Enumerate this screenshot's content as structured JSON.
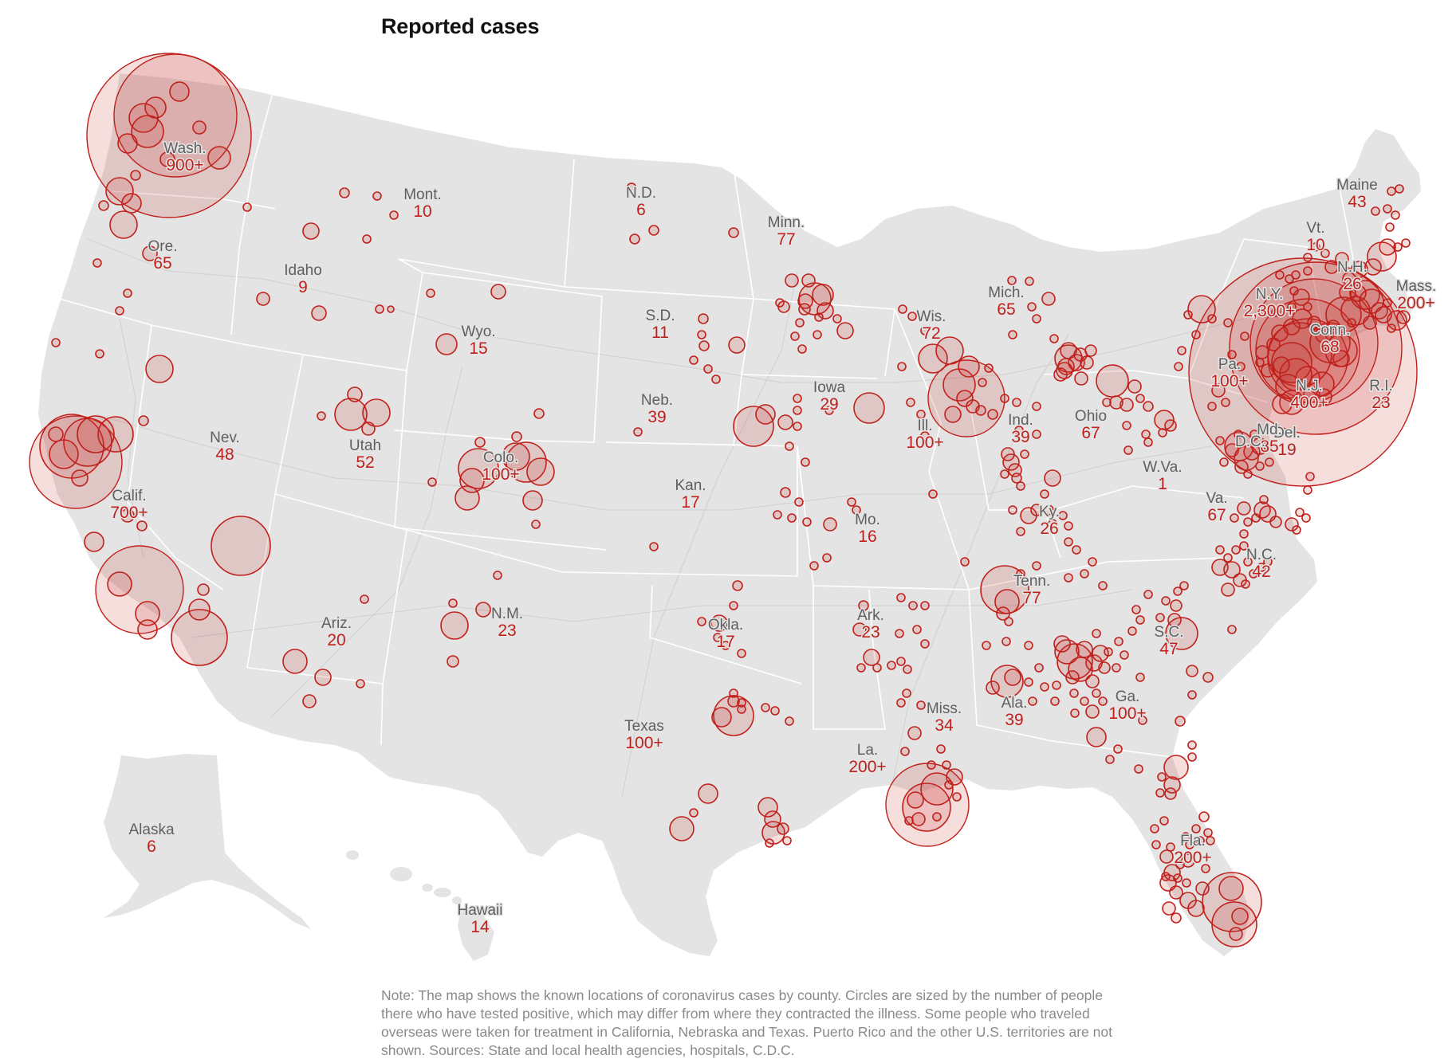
{
  "title": "Reported cases",
  "note": "Note: The map shows the known locations of coronavirus cases by county. Circles are sized by the number of people there who have tested positive, which may differ from where they contracted the illness. Some people who traveled overseas were taken for treatment in California, Nebraska and Texas. Puerto Rico and the other U.S. territories are not shown. Sources: State and local health agencies, hospitals, C.D.C.",
  "colors": {
    "land": "#e4e4e4",
    "border": "#ffffff",
    "road": "#d2d2d2",
    "circle_fill": "rgba(200,50,45,0.16)",
    "circle_stroke": "#c0201b",
    "count_text": "#c0201b",
    "name_text": "#5f5f5f"
  },
  "states": [
    {
      "name": "Wash.",
      "count": "900+"
    },
    {
      "name": "Ore.",
      "count": "65"
    },
    {
      "name": "Calif.",
      "count": "700+"
    },
    {
      "name": "Nev.",
      "count": "48"
    },
    {
      "name": "Idaho",
      "count": "9"
    },
    {
      "name": "Mont.",
      "count": "10"
    },
    {
      "name": "Wyo.",
      "count": "15"
    },
    {
      "name": "Utah",
      "count": "52"
    },
    {
      "name": "Colo.",
      "count": "100+"
    },
    {
      "name": "Ariz.",
      "count": "20"
    },
    {
      "name": "N.M.",
      "count": "23"
    },
    {
      "name": "N.D.",
      "count": "6"
    },
    {
      "name": "S.D.",
      "count": "11"
    },
    {
      "name": "Neb.",
      "count": "39"
    },
    {
      "name": "Kan.",
      "count": "17"
    },
    {
      "name": "Okla.",
      "count": "17"
    },
    {
      "name": "Texas",
      "count": "100+"
    },
    {
      "name": "Minn.",
      "count": "77"
    },
    {
      "name": "Iowa",
      "count": "29"
    },
    {
      "name": "Mo.",
      "count": "16"
    },
    {
      "name": "Ark.",
      "count": "23"
    },
    {
      "name": "La.",
      "count": "200+"
    },
    {
      "name": "Wis.",
      "count": "72"
    },
    {
      "name": "Ill.",
      "count": "100+"
    },
    {
      "name": "Mich.",
      "count": "65"
    },
    {
      "name": "Ind.",
      "count": "39"
    },
    {
      "name": "Ohio",
      "count": "67"
    },
    {
      "name": "Ky.",
      "count": "26"
    },
    {
      "name": "Tenn.",
      "count": "77"
    },
    {
      "name": "Miss.",
      "count": "34"
    },
    {
      "name": "Ala.",
      "count": "39"
    },
    {
      "name": "Ga.",
      "count": "100+"
    },
    {
      "name": "Fla.",
      "count": "200+"
    },
    {
      "name": "S.C.",
      "count": "47"
    },
    {
      "name": "N.C.",
      "count": "42"
    },
    {
      "name": "Va.",
      "count": "67"
    },
    {
      "name": "W.Va.",
      "count": "1"
    },
    {
      "name": "Pa.",
      "count": "100+"
    },
    {
      "name": "N.Y.",
      "count": "2,300+"
    },
    {
      "name": "Vt.",
      "count": "10"
    },
    {
      "name": "N.H.",
      "count": "26"
    },
    {
      "name": "Maine",
      "count": "43"
    },
    {
      "name": "Mass.",
      "count": "200+"
    },
    {
      "name": "Conn.",
      "count": "68"
    },
    {
      "name": "R.I.",
      "count": "23"
    },
    {
      "name": "N.J.",
      "count": "400+"
    },
    {
      "name": "Del.",
      "count": "19"
    },
    {
      "name": "Md.",
      "count": "85"
    },
    {
      "name": "D.C.",
      "count": ""
    },
    {
      "name": "Alaska",
      "count": "6"
    },
    {
      "name": "Hawaii",
      "count": "14"
    }
  ]
}
